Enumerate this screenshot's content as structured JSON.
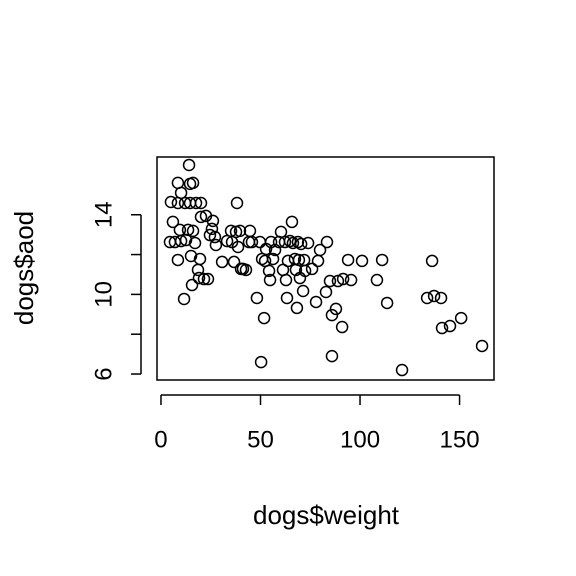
{
  "chart_data": {
    "type": "scatter",
    "xlabel": "dogs$weight",
    "ylabel": "dogs$aod",
    "xlim": [
      -2.0,
      167.3
    ],
    "ylim": [
      5.7,
      16.9
    ],
    "xticks": [
      0,
      50,
      100,
      150
    ],
    "yticks": [
      6,
      10,
      14
    ],
    "yminor_ticks": [
      8,
      12
    ],
    "color": "#000000",
    "x": [
      4.5,
      5.0,
      6.0,
      7.0,
      8.5,
      8.5,
      8.5,
      9.5,
      10.1,
      10.1,
      11.6,
      12.1,
      12.6,
      13.6,
      14.1,
      14.6,
      14.6,
      15.1,
      15.6,
      16.1,
      16.1,
      17.1,
      17.6,
      18.6,
      19.1,
      19.6,
      20.1,
      20.1,
      21.6,
      22.6,
      23.6,
      24.6,
      25.6,
      26.1,
      27.1,
      27.6,
      30.7,
      33.2,
      35.2,
      35.7,
      36.7,
      37.7,
      38.2,
      38.7,
      39.7,
      40.2,
      41.2,
      42.7,
      44.2,
      44.7,
      45.7,
      48.2,
      49.7,
      50.3,
      50.8,
      51.8,
      52.3,
      52.8,
      54.3,
      54.8,
      55.3,
      56.3,
      57.3,
      59.3,
      60.3,
      61.3,
      62.3,
      62.8,
      63.3,
      63.8,
      64.8,
      65.8,
      66.3,
      67.3,
      67.8,
      68.3,
      68.8,
      69.3,
      69.8,
      70.4,
      71.4,
      71.9,
      72.4,
      73.9,
      75.9,
      77.9,
      78.9,
      79.9,
      82.9,
      83.4,
      84.9,
      85.9,
      85.9,
      87.9,
      88.9,
      91.0,
      91.5,
      94.0,
      95.5,
      101.0,
      108.5,
      111.1,
      113.6,
      121.1,
      133.7,
      136.2,
      137.2,
      140.7,
      141.2,
      145.2,
      150.8,
      161.3
    ],
    "values": [
      12.63,
      14.64,
      13.64,
      12.63,
      15.6,
      14.59,
      11.73,
      13.24,
      15.1,
      12.68,
      9.77,
      14.59,
      12.73,
      13.24,
      16.5,
      15.55,
      14.59,
      11.93,
      10.47,
      15.6,
      13.19,
      12.58,
      14.59,
      11.23,
      10.82,
      11.78,
      14.59,
      13.89,
      10.77,
      13.94,
      10.77,
      12.98,
      13.29,
      13.69,
      12.88,
      12.48,
      11.63,
      12.68,
      13.19,
      12.63,
      11.63,
      13.14,
      14.59,
      12.38,
      13.19,
      11.28,
      11.28,
      11.23,
      12.63,
      13.19,
      12.63,
      9.82,
      12.63,
      6.6,
      11.78,
      8.81,
      11.68,
      12.28,
      11.18,
      10.72,
      12.63,
      11.78,
      12.23,
      12.63,
      13.14,
      11.23,
      12.63,
      10.72,
      9.82,
      11.68,
      12.68,
      13.64,
      12.58,
      11.78,
      11.23,
      9.32,
      12.63,
      11.73,
      10.82,
      12.53,
      10.17,
      11.73,
      11.18,
      12.58,
      11.28,
      9.62,
      11.68,
      12.23,
      10.12,
      12.63,
      10.67,
      8.96,
      6.9,
      9.27,
      10.67,
      8.36,
      10.77,
      11.73,
      10.72,
      11.68,
      10.72,
      11.73,
      9.57,
      6.2,
      9.82,
      11.68,
      9.92,
      9.82,
      8.31,
      8.41,
      8.81,
      7.41
    ]
  }
}
